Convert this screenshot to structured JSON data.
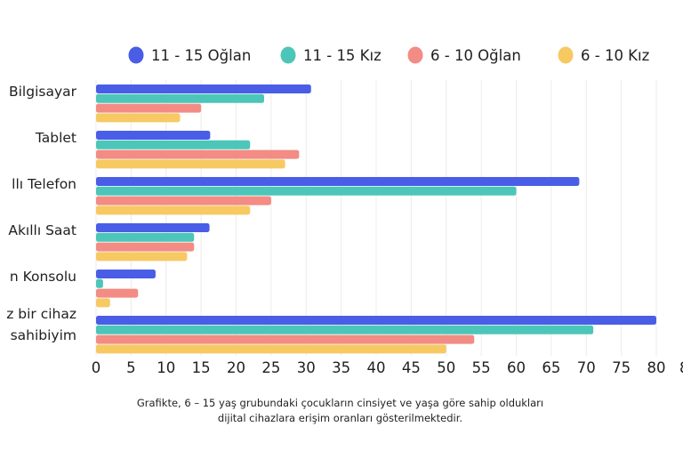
{
  "chart_data": {
    "type": "bar",
    "orientation": "horizontal",
    "title": "",
    "xlabel": "",
    "ylabel": "",
    "xlim": [
      0,
      85
    ],
    "x_ticks": [
      "0",
      "5",
      "10",
      "15",
      "20",
      "25",
      "30",
      "35",
      "40",
      "45",
      "50",
      "55",
      "60",
      "65",
      "70",
      "75",
      "80",
      "8"
    ],
    "grid": true,
    "legend_position": "top",
    "categories": [
      "Bilgisayar",
      "Tablet",
      "llı Telefon",
      "Akıllı Saat",
      "n Konsolu",
      "z bir cihaz|sahibiyim"
    ],
    "series": [
      {
        "name": "11 - 15 Oğlan",
        "color": "#4a5de6",
        "values": [
          30.7,
          16.3,
          69,
          16.2,
          8.5,
          80
        ]
      },
      {
        "name": "11 - 15 Kız",
        "color": "#4cc6b8",
        "values": [
          24,
          22,
          60,
          14,
          1,
          71
        ]
      },
      {
        "name": "6 - 10 Oğlan",
        "color": "#f28c84",
        "values": [
          15,
          29,
          25,
          14,
          6,
          54
        ]
      },
      {
        "name": "6 - 10 Kız",
        "color": "#f7c963",
        "values": [
          12,
          27,
          22,
          13,
          2,
          50
        ]
      }
    ]
  },
  "caption": {
    "line1": "Grafikte, 6 – 15 yaş grubundaki çocukların cinsiyet ve yaşa göre sahip oldukları",
    "line2": "dijital cihazlara erişim oranları gösterilmektedir."
  }
}
